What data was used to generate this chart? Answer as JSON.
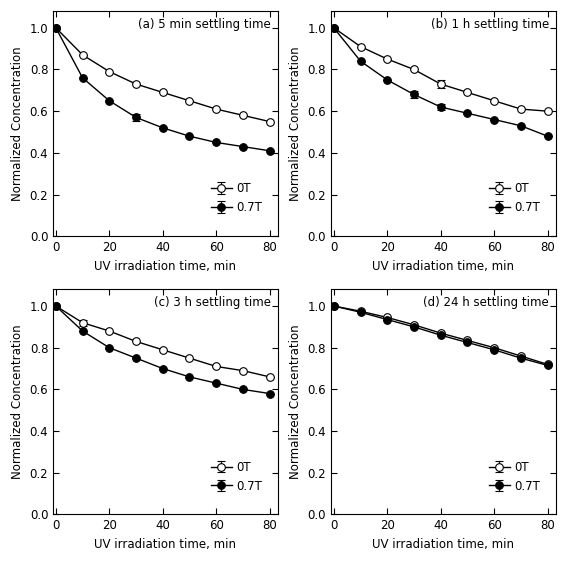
{
  "x": [
    0,
    10,
    20,
    30,
    40,
    50,
    60,
    70,
    80
  ],
  "panels": [
    {
      "title": "(a) 5 min settling time",
      "open_y": [
        1.0,
        0.87,
        0.79,
        0.73,
        0.69,
        0.65,
        0.61,
        0.58,
        0.55
      ],
      "filled_y": [
        1.0,
        0.76,
        0.65,
        0.57,
        0.52,
        0.48,
        0.45,
        0.43,
        0.41
      ],
      "open_err": [
        0.0,
        0.0,
        0.0,
        0.0,
        0.0,
        0.0,
        0.0,
        0.0,
        0.0
      ],
      "filled_err": [
        0.0,
        0.0,
        0.0,
        0.015,
        0.0,
        0.0,
        0.0,
        0.0,
        0.0
      ]
    },
    {
      "title": "(b) 1 h settling time",
      "open_y": [
        1.0,
        0.91,
        0.85,
        0.8,
        0.73,
        0.69,
        0.65,
        0.61,
        0.6
      ],
      "filled_y": [
        1.0,
        0.84,
        0.75,
        0.68,
        0.62,
        0.59,
        0.56,
        0.53,
        0.48
      ],
      "open_err": [
        0.0,
        0.0,
        0.0,
        0.0,
        0.02,
        0.0,
        0.0,
        0.0,
        0.0
      ],
      "filled_err": [
        0.0,
        0.0,
        0.0,
        0.015,
        0.015,
        0.0,
        0.0,
        0.0,
        0.0
      ]
    },
    {
      "title": "(c) 3 h settling time",
      "open_y": [
        1.0,
        0.92,
        0.88,
        0.83,
        0.79,
        0.75,
        0.71,
        0.69,
        0.66
      ],
      "filled_y": [
        1.0,
        0.88,
        0.8,
        0.75,
        0.7,
        0.66,
        0.63,
        0.6,
        0.58
      ],
      "open_err": [
        0.0,
        0.015,
        0.0,
        0.0,
        0.0,
        0.0,
        0.0,
        0.0,
        0.0
      ],
      "filled_err": [
        0.0,
        0.0,
        0.0,
        0.0,
        0.0,
        0.0,
        0.0,
        0.0,
        0.0
      ]
    },
    {
      "title": "(d) 24 h settling time",
      "open_y": [
        1.0,
        0.975,
        0.945,
        0.91,
        0.87,
        0.835,
        0.8,
        0.76,
        0.72
      ],
      "filled_y": [
        1.0,
        0.97,
        0.935,
        0.9,
        0.86,
        0.825,
        0.79,
        0.75,
        0.715
      ],
      "open_err": [
        0.0,
        0.0,
        0.0,
        0.0,
        0.0,
        0.0,
        0.0,
        0.0,
        0.0
      ],
      "filled_err": [
        0.0,
        0.0,
        0.0,
        0.0,
        0.0,
        0.0,
        0.0,
        0.0,
        0.0
      ]
    }
  ],
  "xlabel": "UV irradiation time, min",
  "ylabel": "Normalized Concentration",
  "xlim": [
    -1,
    83
  ],
  "ylim": [
    0.0,
    1.08
  ],
  "yticks": [
    0.0,
    0.2,
    0.4,
    0.6,
    0.8,
    1.0
  ],
  "xticks": [
    0,
    20,
    40,
    60,
    80
  ],
  "legend_open": "0T",
  "legend_filled": "0.7T",
  "line_color": "#000000",
  "marker_size": 5.5,
  "line_width": 1.0,
  "cap_size": 3,
  "error_line_width": 0.8
}
